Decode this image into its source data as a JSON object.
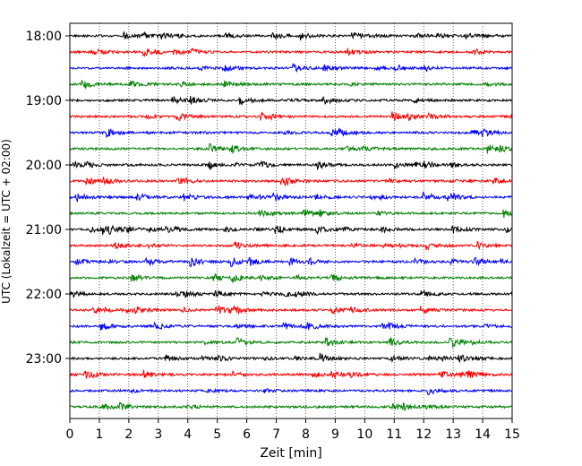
{
  "chart_data": {
    "type": "line",
    "title": "",
    "xlabel": "Zeit  [min]",
    "ylabel": "UTC (Lokalzeit = UTC + 02:00)",
    "xlim": [
      0,
      15
    ],
    "x_ticks": [
      "0",
      "1",
      "2",
      "3",
      "4",
      "5",
      "6",
      "7",
      "8",
      "9",
      "10",
      "11",
      "12",
      "13",
      "14",
      "15"
    ],
    "y_tick_labels": [
      "18:00",
      "19:00",
      "20:00",
      "21:00",
      "22:00",
      "23:00"
    ],
    "grid": "vertical dotted at each minute",
    "trace_colors": [
      "#000000",
      "#ff0000",
      "#0000ff",
      "#008000"
    ],
    "traces": [
      {
        "start": "18:00"
      },
      {
        "start": "18:15"
      },
      {
        "start": "18:30"
      },
      {
        "start": "18:45"
      },
      {
        "start": "19:00"
      },
      {
        "start": "19:15"
      },
      {
        "start": "19:30"
      },
      {
        "start": "19:45"
      },
      {
        "start": "20:00"
      },
      {
        "start": "20:15"
      },
      {
        "start": "20:30"
      },
      {
        "start": "20:45"
      },
      {
        "start": "21:00"
      },
      {
        "start": "21:15"
      },
      {
        "start": "21:30"
      },
      {
        "start": "21:45"
      },
      {
        "start": "22:00"
      },
      {
        "start": "22:15"
      },
      {
        "start": "22:30"
      },
      {
        "start": "22:45"
      },
      {
        "start": "23:00"
      },
      {
        "start": "23:15"
      },
      {
        "start": "23:30"
      },
      {
        "start": "23:45"
      }
    ]
  }
}
